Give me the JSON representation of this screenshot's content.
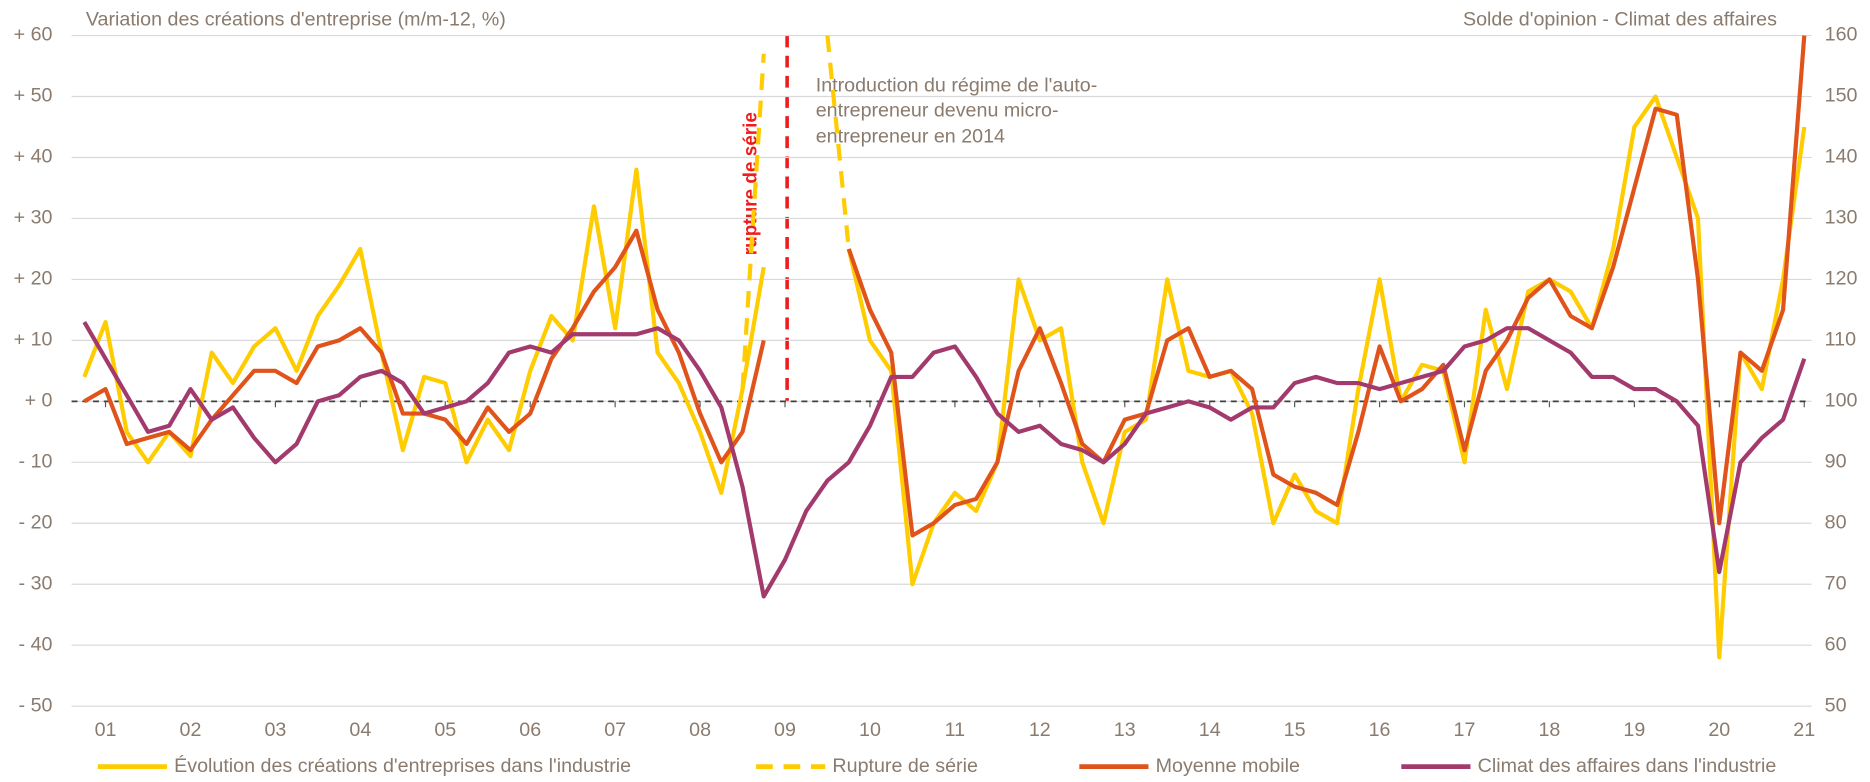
{
  "chart_data": {
    "type": "line",
    "y_title": "Variation des créations d'entreprise (m/m-12, %)",
    "y2_title": "Solde d'opinion - Climat des affaires",
    "annotations": [
      "rupture de série",
      "Introduction du régime de l'auto-",
      "entrepreneur devenu micro-",
      "entrepreneur en 2014"
    ],
    "xlim": [
      2000.6,
      2021.03
    ],
    "xticks": [
      {
        "value": 2001,
        "label": "01"
      },
      {
        "value": 2002,
        "label": "02"
      },
      {
        "value": 2003,
        "label": "03"
      },
      {
        "value": 2004,
        "label": "04"
      },
      {
        "value": 2005,
        "label": "05"
      },
      {
        "value": 2006,
        "label": "06"
      },
      {
        "value": 2007,
        "label": "07"
      },
      {
        "value": 2008,
        "label": "08"
      },
      {
        "value": 2009,
        "label": "09"
      },
      {
        "value": 2010,
        "label": "10"
      },
      {
        "value": 2011,
        "label": "11"
      },
      {
        "value": 2012,
        "label": "12"
      },
      {
        "value": 2013,
        "label": "13"
      },
      {
        "value": 2014,
        "label": "14"
      },
      {
        "value": 2015,
        "label": "15"
      },
      {
        "value": 2016,
        "label": "16"
      },
      {
        "value": 2017,
        "label": "17"
      },
      {
        "value": 2018,
        "label": "18"
      },
      {
        "value": 2019,
        "label": "19"
      },
      {
        "value": 2020,
        "label": "20"
      },
      {
        "value": 2021,
        "label": "21"
      }
    ],
    "ylim": [
      -50,
      60
    ],
    "yticks": [
      {
        "value": 60,
        "label": "+ 60"
      },
      {
        "value": 50,
        "label": "+ 50"
      },
      {
        "value": 40,
        "label": "+ 40"
      },
      {
        "value": 30,
        "label": "+ 30"
      },
      {
        "value": 20,
        "label": "+ 20"
      },
      {
        "value": 10,
        "label": "+ 10"
      },
      {
        "value": 0,
        "label": "+ 0"
      },
      {
        "value": -10,
        "label": "- 10"
      },
      {
        "value": -20,
        "label": "- 20"
      },
      {
        "value": -30,
        "label": "- 30"
      },
      {
        "value": -40,
        "label": "- 40"
      },
      {
        "value": -50,
        "label": "- 50"
      }
    ],
    "y2lim": [
      50,
      160
    ],
    "y2ticks": [
      160,
      150,
      140,
      130,
      120,
      110,
      100,
      90,
      80,
      70,
      60,
      50
    ],
    "grid": true,
    "zero_line": true,
    "legend": "bottom",
    "x": [
      2000.75,
      2001.0,
      2001.25,
      2001.5,
      2001.75,
      2002.0,
      2002.25,
      2002.5,
      2002.75,
      2003.0,
      2003.25,
      2003.5,
      2003.75,
      2004.0,
      2004.25,
      2004.5,
      2004.75,
      2005.0,
      2005.25,
      2005.5,
      2005.75,
      2006.0,
      2006.25,
      2006.5,
      2006.75,
      2007.0,
      2007.25,
      2007.5,
      2007.75,
      2008.0,
      2008.25,
      2008.5,
      2008.75,
      2009.0,
      2009.25,
      2009.5,
      2009.75,
      2010.0,
      2010.25,
      2010.5,
      2010.75,
      2011.0,
      2011.25,
      2011.5,
      2011.75,
      2012.0,
      2012.25,
      2012.5,
      2012.75,
      2013.0,
      2013.25,
      2013.5,
      2013.75,
      2014.0,
      2014.25,
      2014.5,
      2014.75,
      2015.0,
      2015.25,
      2015.5,
      2015.75,
      2016.0,
      2016.25,
      2016.5,
      2016.75,
      2017.0,
      2017.25,
      2017.5,
      2017.75,
      2018.0,
      2018.25,
      2018.5,
      2018.75,
      2019.0,
      2019.25,
      2019.5,
      2019.75,
      2020.0,
      2020.25,
      2020.5,
      2020.75,
      2021.0
    ],
    "series": [
      {
        "name": "Évolution des créations d'entreprises dans l'industrie",
        "color": "#ffcc00",
        "dashed": false,
        "values": [
          4,
          13,
          -5,
          -10,
          -5,
          -9,
          8,
          3,
          9,
          12,
          5,
          14,
          19,
          25,
          8,
          -8,
          4,
          3,
          -10,
          -3,
          -8,
          5,
          14,
          10,
          32,
          12,
          38,
          8,
          3,
          -5,
          -15,
          2,
          22,
          null,
          null,
          null,
          25,
          10,
          5,
          -30,
          -20,
          -15,
          -18,
          -10,
          20,
          10,
          12,
          -10,
          -20,
          -5,
          -3,
          20,
          5,
          4,
          5,
          -2,
          -20,
          -12,
          -18,
          -20,
          2,
          20,
          0,
          6,
          5,
          -10,
          15,
          2,
          18,
          20,
          18,
          12,
          25,
          45,
          50,
          40,
          30,
          -42,
          8,
          2,
          20,
          45
        ]
      },
      {
        "name": "Rupture de série",
        "color": "#ffcc00",
        "dashed": true,
        "values": [
          null,
          null,
          null,
          null,
          null,
          null,
          null,
          null,
          null,
          null,
          null,
          null,
          null,
          null,
          null,
          null,
          null,
          null,
          null,
          null,
          null,
          null,
          null,
          null,
          null,
          null,
          null,
          null,
          null,
          null,
          null,
          2,
          57,
          null,
          null,
          60,
          25,
          null,
          null,
          null,
          null,
          null,
          null,
          null,
          null,
          null,
          null,
          null,
          null,
          null,
          null,
          null,
          null,
          null,
          null,
          null,
          null,
          null,
          null,
          null,
          null,
          null,
          null,
          null,
          null,
          null,
          null,
          null,
          null,
          null,
          null,
          null,
          null,
          null,
          null,
          null,
          null,
          null,
          null,
          null,
          null,
          null
        ]
      },
      {
        "name": "Moyenne mobile",
        "color": "#e0531a",
        "dashed": false,
        "values": [
          0,
          2,
          -7,
          -6,
          -5,
          -8,
          -3,
          1,
          5,
          5,
          3,
          9,
          10,
          12,
          8,
          -2,
          -2,
          -3,
          -7,
          -1,
          -5,
          -2,
          7,
          12,
          18,
          22,
          28,
          15,
          8,
          -2,
          -10,
          -5,
          10,
          null,
          null,
          null,
          25,
          15,
          8,
          -22,
          -20,
          -17,
          -16,
          -10,
          5,
          12,
          3,
          -7,
          -10,
          -3,
          -2,
          10,
          12,
          4,
          5,
          2,
          -12,
          -14,
          -15,
          -17,
          -5,
          9,
          0,
          2,
          6,
          -8,
          5,
          10,
          17,
          20,
          14,
          12,
          22,
          35,
          48,
          47,
          20,
          -20,
          8,
          5,
          15,
          60
        ]
      },
      {
        "name": "Climat des affaires dans l'industrie",
        "color": "#a33a6e",
        "dashed": false,
        "axis": "y2",
        "values": [
          113,
          107,
          101,
          95,
          96,
          102,
          97,
          99,
          94,
          90,
          93,
          100,
          101,
          104,
          105,
          103,
          98,
          99,
          100,
          103,
          108,
          109,
          108,
          111,
          111,
          111,
          111,
          112,
          110,
          105,
          99,
          86,
          68,
          74,
          82,
          87,
          90,
          96,
          104,
          104,
          108,
          109,
          104,
          98,
          95,
          96,
          93,
          92,
          90,
          93,
          98,
          99,
          100,
          99,
          97,
          99,
          99,
          103,
          104,
          103,
          103,
          102,
          103,
          104,
          105,
          109,
          110,
          112,
          112,
          110,
          108,
          104,
          104,
          102,
          102,
          100,
          96,
          72,
          90,
          94,
          97,
          107
        ]
      }
    ]
  }
}
